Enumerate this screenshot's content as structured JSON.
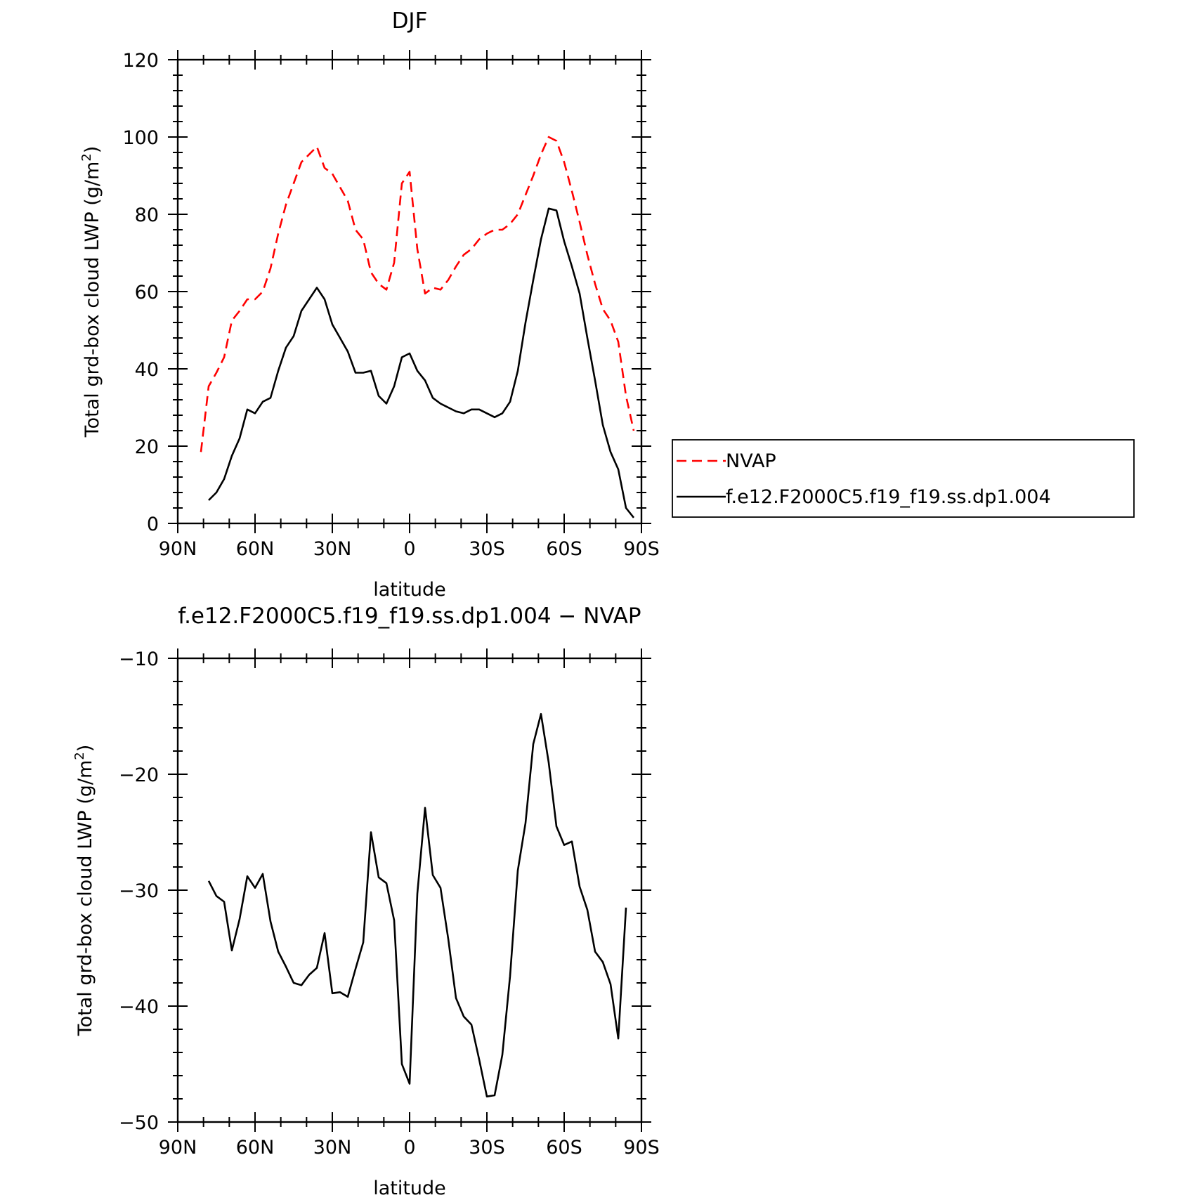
{
  "chart_data": [
    {
      "type": "line",
      "title": "DJF",
      "xlabel": "latitude",
      "ylabel": "Total grd-box cloud LWP (g/m²)",
      "ylabel_main": "Total grd-box cloud LWP (g/m",
      "ylabel_sup": "2",
      "ylabel_end": ")",
      "xlim": [
        90,
        -90
      ],
      "ylim": [
        0,
        120
      ],
      "xticks": [
        90,
        60,
        30,
        0,
        -30,
        -60,
        -90
      ],
      "xtick_labels": [
        "90N",
        "60N",
        "30N",
        "0",
        "30S",
        "60S",
        "90S"
      ],
      "yticks": [
        0,
        20,
        40,
        60,
        80,
        100,
        120
      ],
      "ytick_labels": [
        "0",
        "20",
        "40",
        "60",
        "80",
        "100",
        "120"
      ],
      "legend_placement": "right",
      "series": [
        {
          "name": "NVAP",
          "color": "#ff0000",
          "dash": "dashed",
          "points": [
            [
              81,
              18.5
            ],
            [
              78,
              35.5
            ],
            [
              75,
              39
            ],
            [
              72,
              43
            ],
            [
              69,
              52.5
            ],
            [
              66,
              55
            ],
            [
              63,
              58
            ],
            [
              60,
              58
            ],
            [
              57,
              60
            ],
            [
              54,
              66
            ],
            [
              51,
              75
            ],
            [
              48,
              82.5
            ],
            [
              45,
              88
            ],
            [
              42,
              93.5
            ],
            [
              39,
              95.5
            ],
            [
              36,
              97.5
            ],
            [
              33,
              92
            ],
            [
              30,
              90.5
            ],
            [
              27,
              87
            ],
            [
              24,
              83.5
            ],
            [
              21,
              76
            ],
            [
              18,
              73.5
            ],
            [
              15,
              65
            ],
            [
              12,
              62
            ],
            [
              9,
              60.5
            ],
            [
              6,
              67.5
            ],
            [
              3,
              88
            ],
            [
              0,
              91
            ],
            [
              -3,
              71
            ],
            [
              -6,
              59.5
            ],
            [
              -9,
              61
            ],
            [
              -12,
              60.5
            ],
            [
              -15,
              63
            ],
            [
              -18,
              66.5
            ],
            [
              -21,
              69.5
            ],
            [
              -24,
              71
            ],
            [
              -27,
              73.5
            ],
            [
              -30,
              75
            ],
            [
              -33,
              76
            ],
            [
              -36,
              76
            ],
            [
              -39,
              77.5
            ],
            [
              -42,
              80
            ],
            [
              -45,
              85
            ],
            [
              -48,
              90
            ],
            [
              -51,
              95.5
            ],
            [
              -54,
              100
            ],
            [
              -57,
              99
            ],
            [
              -60,
              93.5
            ],
            [
              -63,
              86
            ],
            [
              -66,
              78
            ],
            [
              -69,
              69.5
            ],
            [
              -72,
              62
            ],
            [
              -75,
              55.5
            ],
            [
              -78,
              52.5
            ],
            [
              -81,
              47
            ],
            [
              -84,
              33
            ],
            [
              -87,
              24
            ]
          ]
        },
        {
          "name": "f.e12.F2000C5.f19_f19.ss.dp1.004",
          "color": "#000000",
          "dash": "solid",
          "points": [
            [
              78,
              6
            ],
            [
              75,
              8
            ],
            [
              72,
              11.5
            ],
            [
              69,
              17.5
            ],
            [
              66,
              22
            ],
            [
              63,
              29.5
            ],
            [
              60,
              28.5
            ],
            [
              57,
              31.5
            ],
            [
              54,
              32.5
            ],
            [
              51,
              39.5
            ],
            [
              48,
              45.5
            ],
            [
              45,
              48.5
            ],
            [
              42,
              55
            ],
            [
              39,
              58
            ],
            [
              36,
              61
            ],
            [
              33,
              58
            ],
            [
              30,
              51.5
            ],
            [
              27,
              48
            ],
            [
              24,
              44.5
            ],
            [
              21,
              39
            ],
            [
              18,
              39
            ],
            [
              15,
              39.5
            ],
            [
              12,
              33
            ],
            [
              9,
              31
            ],
            [
              6,
              35.5
            ],
            [
              3,
              43
            ],
            [
              0,
              44
            ],
            [
              -3,
              39.5
            ],
            [
              -6,
              37
            ],
            [
              -9,
              32.5
            ],
            [
              -12,
              31
            ],
            [
              -15,
              30
            ],
            [
              -18,
              29
            ],
            [
              -21,
              28.5
            ],
            [
              -24,
              29.5
            ],
            [
              -27,
              29.5
            ],
            [
              -30,
              28.5
            ],
            [
              -33,
              27.5
            ],
            [
              -36,
              28.5
            ],
            [
              -39,
              31.5
            ],
            [
              -42,
              39.5
            ],
            [
              -45,
              52
            ],
            [
              -48,
              63
            ],
            [
              -51,
              73.5
            ],
            [
              -54,
              81.5
            ],
            [
              -57,
              81
            ],
            [
              -60,
              73
            ],
            [
              -63,
              66.5
            ],
            [
              -66,
              59.5
            ],
            [
              -69,
              48
            ],
            [
              -72,
              37
            ],
            [
              -75,
              25.5
            ],
            [
              -78,
              18.5
            ],
            [
              -81,
              14
            ],
            [
              -84,
              4
            ],
            [
              -87,
              1.5
            ]
          ]
        }
      ]
    },
    {
      "type": "line",
      "title": "f.e12.F2000C5.f19_f19.ss.dp1.004 − NVAP",
      "xlabel": "latitude",
      "ylabel": "Total grd-box cloud LWP (g/m²)",
      "ylabel_main": "Total grd-box cloud LWP (g/m",
      "ylabel_sup": "2",
      "ylabel_end": ")",
      "xlim": [
        90,
        -90
      ],
      "ylim": [
        -50,
        -10
      ],
      "xticks": [
        90,
        60,
        30,
        0,
        -30,
        -60,
        -90
      ],
      "xtick_labels": [
        "90N",
        "60N",
        "30N",
        "0",
        "30S",
        "60S",
        "90S"
      ],
      "yticks": [
        -50,
        -40,
        -30,
        -20,
        -10
      ],
      "ytick_labels": [
        "−50",
        "−40",
        "−30",
        "−20",
        "−10"
      ],
      "series": [
        {
          "color": "#000000",
          "dash": "solid",
          "points": [
            [
              78,
              -29.2
            ],
            [
              75,
              -30.5
            ],
            [
              72,
              -31
            ],
            [
              69,
              -35.2
            ],
            [
              66,
              -32.5
            ],
            [
              63,
              -28.8
            ],
            [
              60,
              -29.8
            ],
            [
              57,
              -28.6
            ],
            [
              54,
              -32.7
            ],
            [
              51,
              -35.3
            ],
            [
              48,
              -36.6
            ],
            [
              45,
              -38
            ],
            [
              42,
              -38.2
            ],
            [
              39,
              -37.3
            ],
            [
              36,
              -36.7
            ],
            [
              33,
              -33.7
            ],
            [
              30,
              -38.9
            ],
            [
              27,
              -38.8
            ],
            [
              24,
              -39.2
            ],
            [
              21,
              -36.8
            ],
            [
              18,
              -34.5
            ],
            [
              15,
              -25
            ],
            [
              12,
              -28.9
            ],
            [
              9,
              -29.4
            ],
            [
              6,
              -32.6
            ],
            [
              3,
              -45
            ],
            [
              0,
              -46.7
            ],
            [
              -3,
              -30.3
            ],
            [
              -6,
              -22.9
            ],
            [
              -9,
              -28.7
            ],
            [
              -12,
              -29.8
            ],
            [
              -15,
              -34.2
            ],
            [
              -18,
              -39.3
            ],
            [
              -21,
              -40.9
            ],
            [
              -24,
              -41.6
            ],
            [
              -27,
              -44.6
            ],
            [
              -30,
              -47.8
            ],
            [
              -33,
              -47.7
            ],
            [
              -36,
              -44.2
            ],
            [
              -39,
              -37.4
            ],
            [
              -42,
              -28.3
            ],
            [
              -45,
              -24.2
            ],
            [
              -48,
              -17.4
            ],
            [
              -51,
              -14.8
            ],
            [
              -54,
              -19
            ],
            [
              -57,
              -24.5
            ],
            [
              -60,
              -26.1
            ],
            [
              -63,
              -25.8
            ],
            [
              -66,
              -29.7
            ],
            [
              -69,
              -31.7
            ],
            [
              -72,
              -35.3
            ],
            [
              -75,
              -36.2
            ],
            [
              -78,
              -38.1
            ],
            [
              -81,
              -42.8
            ],
            [
              -84,
              -31.5
            ]
          ]
        }
      ]
    }
  ]
}
